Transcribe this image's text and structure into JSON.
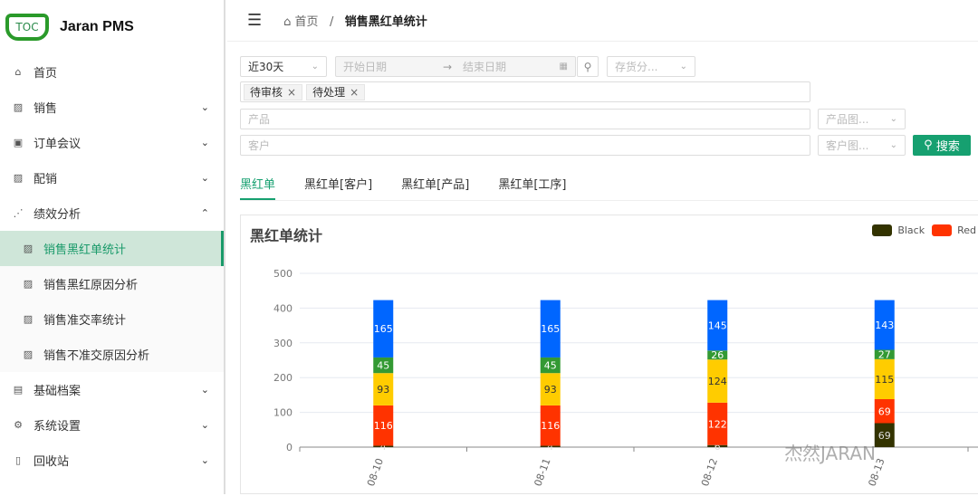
{
  "app": {
    "title": "Jaran PMS",
    "logo_text": "TOC"
  },
  "sidebar": {
    "items": [
      {
        "label": "首页",
        "icon": "home-icon",
        "chev": ""
      },
      {
        "label": "销售",
        "icon": "chart-icon",
        "chev": "⌄"
      },
      {
        "label": "订单会议",
        "icon": "calendar-icon",
        "chev": "⌄"
      },
      {
        "label": "配销",
        "icon": "chart-icon",
        "chev": "⌄"
      },
      {
        "label": "绩效分析",
        "icon": "scatter-icon",
        "chev": "⌃"
      }
    ],
    "sub_items": [
      {
        "label": "销售黑红单统计",
        "active": true
      },
      {
        "label": "销售黑红原因分析"
      },
      {
        "label": "销售准交率统计"
      },
      {
        "label": "销售不准交原因分析"
      }
    ],
    "bottom_items": [
      {
        "label": "基础档案",
        "icon": "book-icon",
        "chev": "⌄"
      },
      {
        "label": "系统设置",
        "icon": "gear-icon",
        "chev": "⌄"
      },
      {
        "label": "回收站",
        "icon": "trash-icon",
        "chev": "⌄"
      }
    ]
  },
  "header": {
    "home": "首页",
    "sep": "/",
    "current": "销售黑红单统计"
  },
  "filters": {
    "period": "近30天",
    "start_placeholder": "开始日期",
    "end_placeholder": "结束日期",
    "date_arrow": "→",
    "stock_placeholder": "存货分...",
    "tags": [
      "待审核",
      "待处理"
    ],
    "product_placeholder": "产品",
    "product_img_placeholder": "产品图...",
    "customer_placeholder": "客户",
    "customer_img_placeholder": "客户图...",
    "search_label": "搜索"
  },
  "tabs": [
    "黑红单",
    "黑红单[客户]",
    "黑红单[产品]",
    "黑红单[工序]"
  ],
  "card": {
    "title": "黑红单统计"
  },
  "chart_data": {
    "type": "bar",
    "stacked": true,
    "title": "黑红单统计",
    "categories": [
      "08-10",
      "08-11",
      "08-12",
      "08-13"
    ],
    "ylim": [
      0,
      500
    ],
    "yticks": [
      0,
      100,
      200,
      300,
      400,
      500
    ],
    "grid": true,
    "legend_position": "top-right",
    "series": [
      {
        "name": "Black",
        "color": "#333300",
        "label_color": "#ddd",
        "values": [
          4,
          4,
          6,
          69
        ]
      },
      {
        "name": "Red",
        "color": "#ff3300",
        "label_color": "#fff",
        "values": [
          116,
          116,
          122,
          69
        ]
      },
      {
        "color": "#ffcc00",
        "label_color": "#333",
        "values": [
          93,
          93,
          124,
          115
        ]
      },
      {
        "color": "#339933",
        "label_color": "#fff",
        "values": [
          45,
          45,
          26,
          27
        ]
      },
      {
        "color": "#0066ff",
        "label_color": "#fff",
        "values": [
          165,
          165,
          145,
          143
        ]
      }
    ]
  },
  "watermark": "杰然JARAN"
}
